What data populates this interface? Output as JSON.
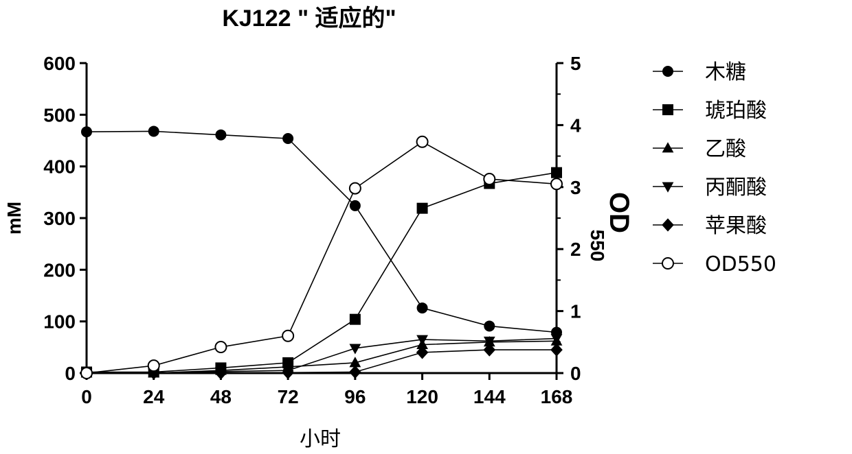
{
  "chart_data": {
    "type": "line",
    "title": "KJ122 \" 适应的\"",
    "xlabel": "小时",
    "ylabel_left": "mM",
    "ylabel_right_main": "OD",
    "ylabel_right_sub": "550",
    "x": [
      0,
      24,
      48,
      72,
      96,
      120,
      144,
      168
    ],
    "xlim": [
      0,
      168
    ],
    "ylim_left": [
      0,
      600
    ],
    "ylim_right": [
      0,
      5
    ],
    "x_ticks": [
      "0",
      "24",
      "48",
      "72",
      "96",
      "120",
      "144",
      "168"
    ],
    "y_left_ticks": [
      "0",
      "100",
      "200",
      "300",
      "400",
      "500",
      "600"
    ],
    "y_right_ticks": [
      "0",
      "1",
      "2",
      "3",
      "4",
      "5"
    ],
    "grid": false,
    "legend_position": "right",
    "series": [
      {
        "name": "木糖",
        "marker": "circle-filled",
        "axis": "left",
        "values": [
          467,
          468,
          461,
          454,
          324,
          126,
          91,
          79
        ]
      },
      {
        "name": "琥珀酸",
        "marker": "square-filled",
        "axis": "left",
        "values": [
          2,
          2,
          10,
          20,
          104,
          319,
          367,
          388
        ]
      },
      {
        "name": "乙酸",
        "marker": "triangle-up-filled",
        "axis": "left",
        "values": [
          0,
          0,
          5,
          12,
          20,
          55,
          60,
          62
        ]
      },
      {
        "name": "丙酮酸",
        "marker": "triangle-down-filled",
        "axis": "left",
        "values": [
          0,
          0,
          3,
          5,
          48,
          65,
          62,
          67
        ]
      },
      {
        "name": "苹果酸",
        "marker": "diamond-filled",
        "axis": "left",
        "values": [
          0,
          0,
          0,
          1,
          2,
          40,
          45,
          45
        ]
      },
      {
        "name": "OD550",
        "marker": "circle-open",
        "axis": "right",
        "values": [
          0,
          0.12,
          0.42,
          0.6,
          2.98,
          3.73,
          3.13,
          3.05
        ]
      }
    ]
  }
}
